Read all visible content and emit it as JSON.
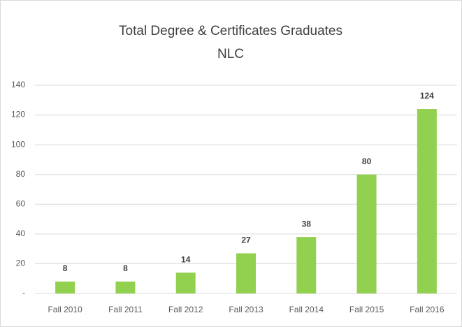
{
  "chart_data": {
    "type": "bar",
    "title": "Total Degree & Certificates Graduates",
    "subtitle": "NLC",
    "categories": [
      "Fall 2010",
      "Fall 2011",
      "Fall 2012",
      "Fall 2013",
      "Fall 2014",
      "Fall 2015",
      "Fall 2016"
    ],
    "values": [
      8,
      8,
      14,
      27,
      38,
      80,
      124
    ],
    "color": "#92d050",
    "ylim": [
      0,
      140
    ],
    "yticks": [
      {
        "value": 0,
        "label": "-"
      },
      20,
      40,
      60,
      80,
      100,
      120,
      140
    ],
    "grid": true
  }
}
